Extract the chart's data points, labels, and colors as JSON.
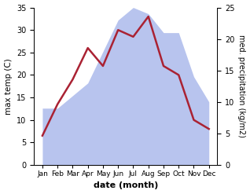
{
  "months": [
    "Jan",
    "Feb",
    "Mar",
    "Apr",
    "May",
    "Jun",
    "Jul",
    "Aug",
    "Sep",
    "Oct",
    "Nov",
    "Dec"
  ],
  "temperature": [
    6.5,
    13.5,
    19,
    26,
    22,
    30,
    28.5,
    33,
    22,
    20,
    10,
    8
  ],
  "precipitation": [
    9,
    9,
    11,
    13,
    18,
    23,
    25,
    24,
    21,
    21,
    14,
    10
  ],
  "temp_color": "#aa2233",
  "precip_color": "#b8c4ee",
  "ylabel_left": "max temp (C)",
  "ylabel_right": "med. precipitation (kg/m2)",
  "xlabel": "date (month)",
  "ylim_left": [
    0,
    35
  ],
  "ylim_right": [
    0,
    25
  ],
  "yticks_left": [
    0,
    5,
    10,
    15,
    20,
    25,
    30,
    35
  ],
  "yticks_right": [
    0,
    5,
    10,
    15,
    20,
    25
  ],
  "bg_color": "#ffffff",
  "line_width": 1.8
}
